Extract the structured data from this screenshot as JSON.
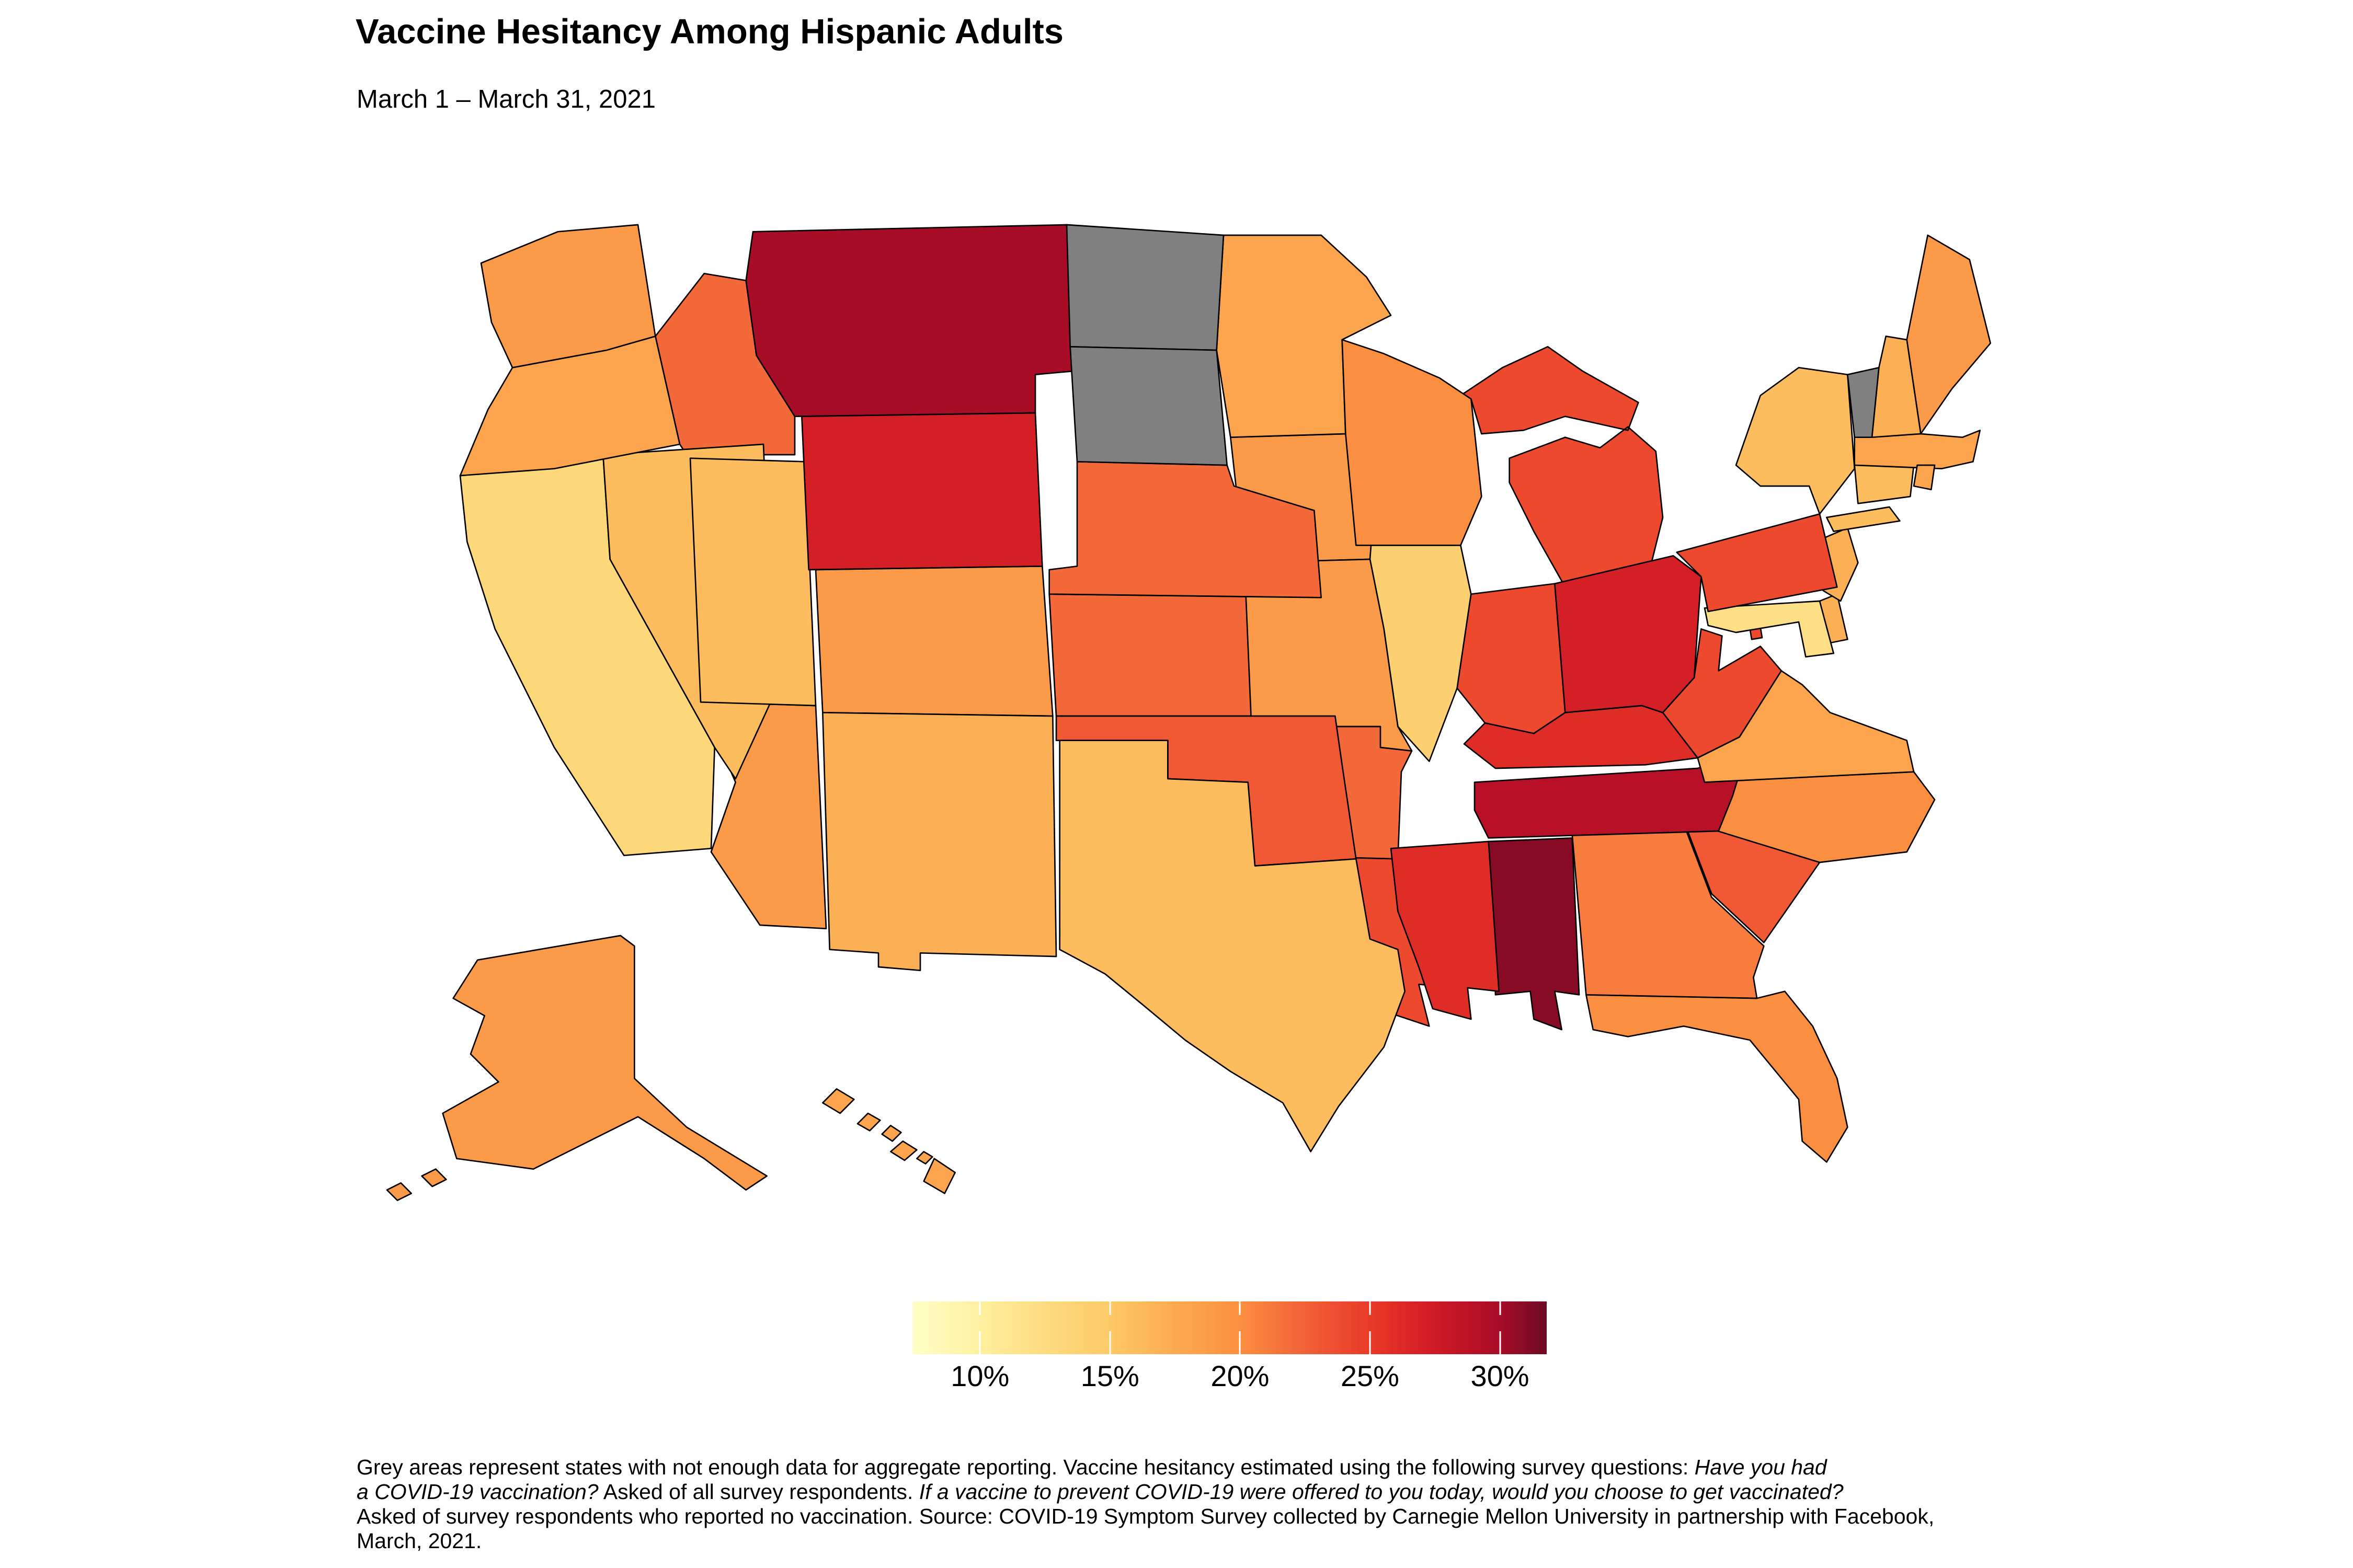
{
  "header": {
    "title": "Vaccine Hesitancy Among Hispanic Adults",
    "subtitle": "March 1 – March 31, 2021"
  },
  "footnote": {
    "lines": [
      [
        {
          "text": "Grey areas represent states with not enough data for aggregate reporting. Vaccine hesitancy estimated using the following survey questions: ",
          "italic": false
        },
        {
          "text": "Have you had",
          "italic": true
        }
      ],
      [
        {
          "text": "a COVID-19 vaccination?",
          "italic": true
        },
        {
          "text": " Asked of all survey respondents. ",
          "italic": false
        },
        {
          "text": "If a vaccine to prevent COVID-19 were offered to you today, would you choose to get vaccinated?",
          "italic": true
        }
      ],
      [
        {
          "text": "Asked of survey respondents who reported no vaccination. Source: COVID-19 Symptom Survey collected by Carnegie Mellon University in partnership with Facebook,",
          "italic": false
        }
      ],
      [
        {
          "text": "March, 2021.",
          "italic": false
        }
      ]
    ]
  },
  "chart_data": {
    "type": "choropleth",
    "title": "Vaccine Hesitancy Among Hispanic Adults",
    "subtitle": "March 1 – March 31, 2021",
    "metric": "vaccine hesitancy (% of Hispanic adults)",
    "unit": "%",
    "legend": {
      "position": "bottom-center",
      "domain": [
        7.4,
        31.8
      ],
      "ticks": [
        {
          "value": 10,
          "label": "10%"
        },
        {
          "value": 15,
          "label": "15%"
        },
        {
          "value": 20,
          "label": "20%"
        },
        {
          "value": 25,
          "label": "25%"
        },
        {
          "value": 30,
          "label": "30%"
        }
      ],
      "gradient_stops": [
        {
          "t": 0.0,
          "color": "#FFFFC6"
        },
        {
          "t": 0.106,
          "color": "#FEF0A0"
        },
        {
          "t": 0.21,
          "color": "#FDDB80"
        },
        {
          "t": 0.311,
          "color": "#FDC967"
        },
        {
          "t": 0.41,
          "color": "#FCAB52"
        },
        {
          "t": 0.516,
          "color": "#FB8F41"
        },
        {
          "t": 0.61,
          "color": "#F26439"
        },
        {
          "t": 0.72,
          "color": "#E93A28"
        },
        {
          "t": 0.8,
          "color": "#D62026"
        },
        {
          "t": 0.875,
          "color": "#BC1126"
        },
        {
          "t": 0.925,
          "color": "#A80D27"
        },
        {
          "t": 1.0,
          "color": "#6E0A24"
        }
      ],
      "no_data_color": "#808080",
      "no_data_note": "Grey areas represent states with not enough data for aggregate reporting."
    },
    "no_data_states": [
      "North Dakota",
      "South Dakota",
      "Vermont"
    ],
    "states": [
      {
        "abbr": "AL",
        "name": "Alabama",
        "value": 31
      },
      {
        "abbr": "AK",
        "name": "Alaska",
        "value": 19
      },
      {
        "abbr": "AZ",
        "name": "Arizona",
        "value": 19
      },
      {
        "abbr": "AR",
        "name": "Arkansas",
        "value": 22
      },
      {
        "abbr": "CA",
        "name": "California",
        "value": 13
      },
      {
        "abbr": "CO",
        "name": "Colorado",
        "value": 19
      },
      {
        "abbr": "CT",
        "name": "Connecticut",
        "value": 16
      },
      {
        "abbr": "DE",
        "name": "Delaware",
        "value": 17
      },
      {
        "abbr": "DC",
        "name": "District of Columbia",
        "value": 24
      },
      {
        "abbr": "FL",
        "name": "Florida",
        "value": 20
      },
      {
        "abbr": "GA",
        "name": "Georgia",
        "value": 21
      },
      {
        "abbr": "HI",
        "name": "Hawaii",
        "value": 18
      },
      {
        "abbr": "ID",
        "name": "Idaho",
        "value": 22
      },
      {
        "abbr": "IL",
        "name": "Illinois",
        "value": 14
      },
      {
        "abbr": "IN",
        "name": "Indiana",
        "value": 24
      },
      {
        "abbr": "IA",
        "name": "Iowa",
        "value": 19
      },
      {
        "abbr": "KS",
        "name": "Kansas",
        "value": 22
      },
      {
        "abbr": "KY",
        "name": "Kentucky",
        "value": 26
      },
      {
        "abbr": "LA",
        "name": "Louisiana",
        "value": 24
      },
      {
        "abbr": "ME",
        "name": "Maine",
        "value": 19
      },
      {
        "abbr": "MD",
        "name": "Maryland",
        "value": 12
      },
      {
        "abbr": "MA",
        "name": "Massachusetts",
        "value": 18
      },
      {
        "abbr": "MI",
        "name": "Michigan",
        "value": 24
      },
      {
        "abbr": "MN",
        "name": "Minnesota",
        "value": 18
      },
      {
        "abbr": "MS",
        "name": "Mississippi",
        "value": 26
      },
      {
        "abbr": "MO",
        "name": "Missouri",
        "value": 19
      },
      {
        "abbr": "MT",
        "name": "Montana",
        "value": 30
      },
      {
        "abbr": "NE",
        "name": "Nebraska",
        "value": 22
      },
      {
        "abbr": "NV",
        "name": "Nevada",
        "value": 16
      },
      {
        "abbr": "NH",
        "name": "New Hampshire",
        "value": 17
      },
      {
        "abbr": "NJ",
        "name": "New Jersey",
        "value": 17
      },
      {
        "abbr": "NM",
        "name": "New Mexico",
        "value": 17
      },
      {
        "abbr": "NY",
        "name": "New York",
        "value": 16
      },
      {
        "abbr": "NC",
        "name": "North Carolina",
        "value": 20
      },
      {
        "abbr": "ND",
        "name": "North Dakota",
        "value": null
      },
      {
        "abbr": "OH",
        "name": "Ohio",
        "value": 27
      },
      {
        "abbr": "OK",
        "name": "Oklahoma",
        "value": 23
      },
      {
        "abbr": "OR",
        "name": "Oregon",
        "value": 18
      },
      {
        "abbr": "PA",
        "name": "Pennsylvania",
        "value": 24
      },
      {
        "abbr": "RI",
        "name": "Rhode Island",
        "value": 18
      },
      {
        "abbr": "SC",
        "name": "South Carolina",
        "value": 23
      },
      {
        "abbr": "SD",
        "name": "South Dakota",
        "value": null
      },
      {
        "abbr": "TN",
        "name": "Tennessee",
        "value": 29
      },
      {
        "abbr": "TX",
        "name": "Texas",
        "value": 16
      },
      {
        "abbr": "UT",
        "name": "Utah",
        "value": 16
      },
      {
        "abbr": "VT",
        "name": "Vermont",
        "value": null
      },
      {
        "abbr": "VA",
        "name": "Virginia",
        "value": 18
      },
      {
        "abbr": "WA",
        "name": "Washington",
        "value": 19
      },
      {
        "abbr": "WV",
        "name": "West Virginia",
        "value": 24
      },
      {
        "abbr": "WI",
        "name": "Wisconsin",
        "value": 20
      },
      {
        "abbr": "WY",
        "name": "Wyoming",
        "value": 27
      }
    ]
  }
}
